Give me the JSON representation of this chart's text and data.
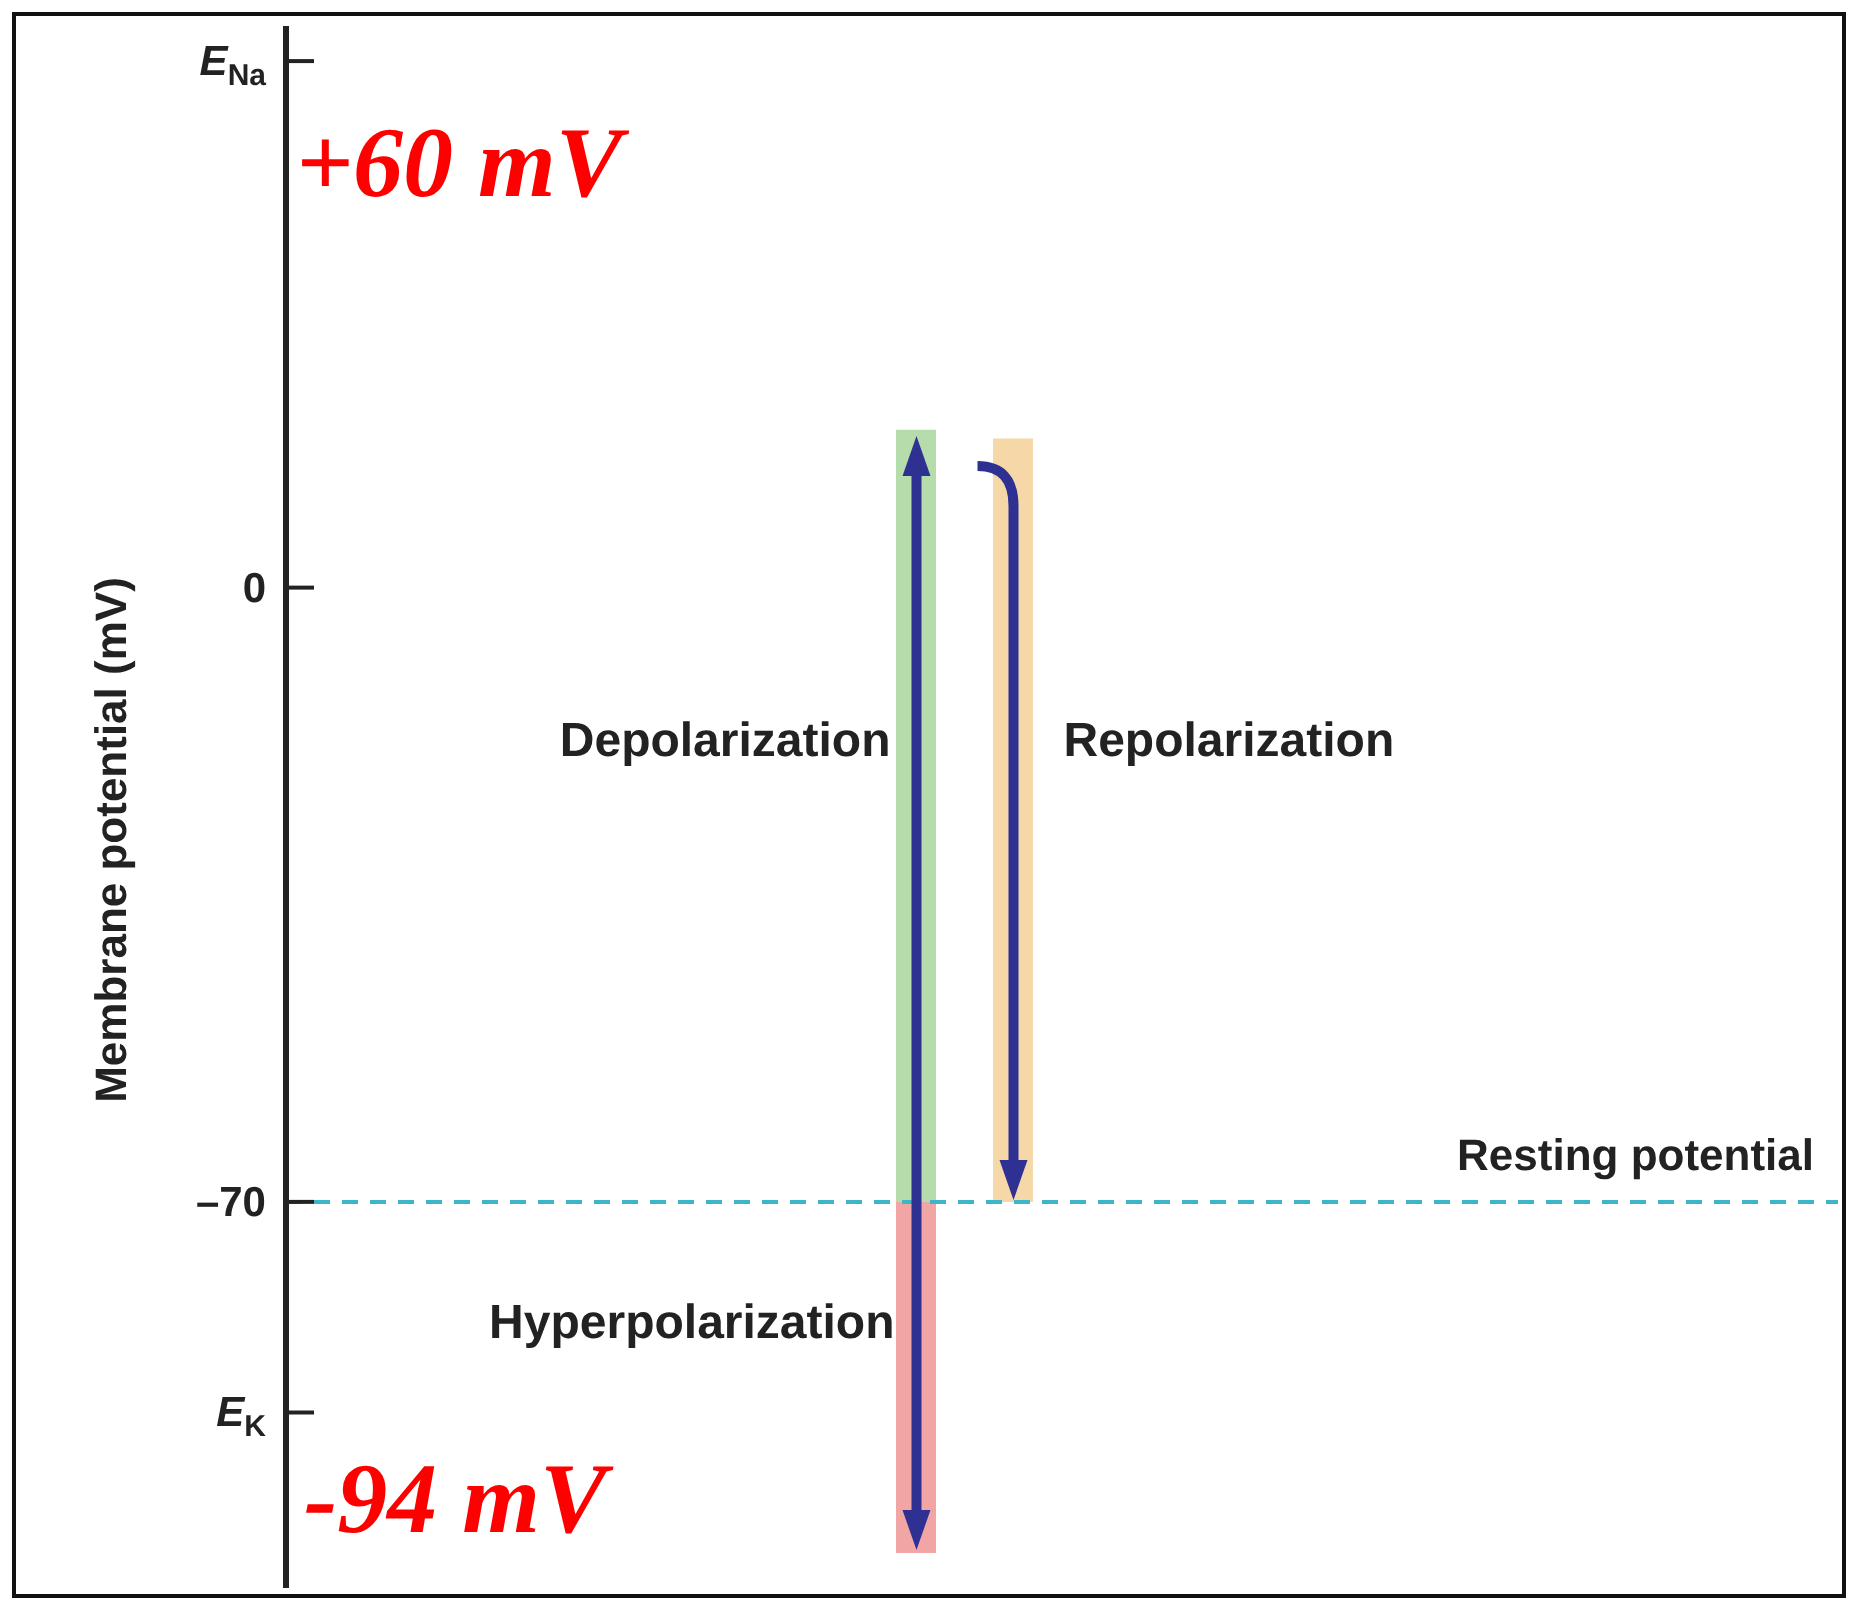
{
  "chart_data": {
    "type": "bar",
    "ylabel": "Membrane potential (mV)",
    "ylim": [
      -114,
      64
    ],
    "categories": [
      null,
      null,
      null,
      null,
      null,
      null,
      null,
      null,
      null,
      null,
      null,
      null,
      null,
      null,
      null,
      null
    ],
    "series": [
      {
        "name": "Depolarization",
        "color": "#b5dcaa",
        "values": [
          null,
          null,
          null,
          null,
          null,
          null,
          88,
          null,
          null,
          null,
          null,
          null,
          null,
          null,
          null,
          null
        ],
        "base": [
          null,
          null,
          null,
          null,
          null,
          null,
          -70,
          null,
          null,
          null,
          null,
          null,
          null,
          null,
          null,
          null
        ]
      },
      {
        "name": "Hyperpolarization",
        "color": "#f2a5a5",
        "values": [
          null,
          null,
          null,
          null,
          null,
          null,
          -40,
          null,
          null,
          null,
          null,
          null,
          null,
          null,
          null,
          null
        ],
        "base": [
          null,
          null,
          null,
          null,
          null,
          null,
          -70,
          null,
          null,
          null,
          null,
          null,
          null,
          null,
          null,
          null
        ]
      },
      {
        "name": "Repolarization",
        "color": "#f6d7a7",
        "values": [
          null,
          null,
          null,
          null,
          null,
          null,
          null,
          87,
          null,
          null,
          null,
          null,
          null,
          null,
          null,
          null
        ],
        "base": [
          null,
          null,
          null,
          null,
          null,
          null,
          null,
          -70,
          null,
          null,
          null,
          null,
          null,
          null,
          null,
          null
        ]
      }
    ],
    "yticks": [
      {
        "value": 60,
        "label": "E$_{Na}$"
      },
      0,
      {
        "value": -70,
        "label": "–70"
      },
      {
        "value": -94,
        "label": "E$_{K}$"
      }
    ],
    "ref_lines": [
      {
        "axis": "y",
        "value": -70,
        "label": "Resting potential",
        "color": "#3fb5c9",
        "line_style": "dashed"
      }
    ],
    "annotations": [
      "+60 mV",
      "-94 mV"
    ],
    "tick_labels": "y"
  }
}
